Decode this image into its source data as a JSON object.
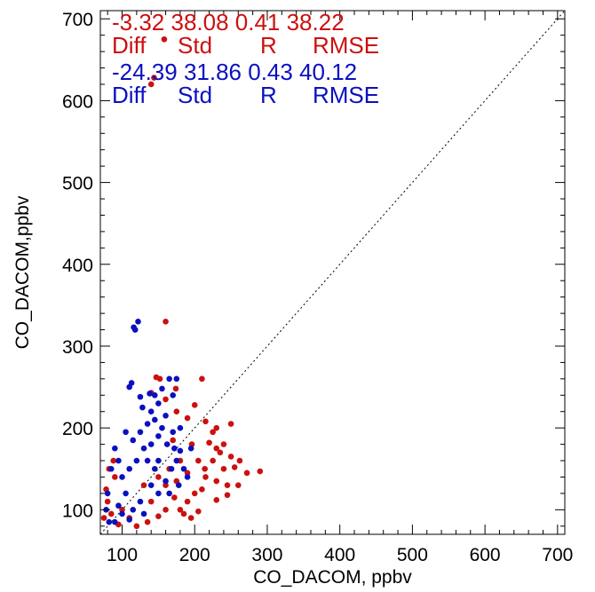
{
  "chart_data": {
    "type": "scatter",
    "xlabel": "CO_DACOM, ppbv",
    "ylabel": "CO_DACOM,ppbv",
    "xlim": [
      70,
      710
    ],
    "ylim": [
      70,
      710
    ],
    "x_ticks": [
      100,
      200,
      300,
      400,
      500,
      600,
      700
    ],
    "y_ticks": [
      100,
      200,
      300,
      400,
      500,
      600,
      700
    ],
    "grid": false,
    "reference_line": "1:1 dotted",
    "stats_header": [
      "Diff",
      "Std",
      "R",
      "RMSE"
    ],
    "series": [
      {
        "color": "#cc1010",
        "stats": {
          "diff": "-3.32",
          "std": "38.08",
          "r": "0.41",
          "rmse": "38.22"
        },
        "points": [
          [
            158,
            675
          ],
          [
            144,
            628
          ],
          [
            140,
            620
          ],
          [
            160,
            330
          ],
          [
            147,
            262
          ],
          [
            152,
            260
          ],
          [
            210,
            260
          ],
          [
            140,
            243
          ],
          [
            174,
            248
          ],
          [
            160,
            235
          ],
          [
            200,
            228
          ],
          [
            250,
            205
          ],
          [
            230,
            200
          ],
          [
            225,
            195
          ],
          [
            175,
            220
          ],
          [
            190,
            212
          ],
          [
            215,
            208
          ],
          [
            170,
            185
          ],
          [
            196,
            180
          ],
          [
            220,
            182
          ],
          [
            235,
            170
          ],
          [
            250,
            165
          ],
          [
            262,
            160
          ],
          [
            240,
            150
          ],
          [
            255,
            152
          ],
          [
            272,
            145
          ],
          [
            290,
            147
          ],
          [
            260,
            130
          ],
          [
            245,
            130
          ],
          [
            230,
            135
          ],
          [
            215,
            140
          ],
          [
            200,
            120
          ],
          [
            190,
            110
          ],
          [
            205,
            98
          ],
          [
            230,
            112
          ],
          [
            210,
            125
          ],
          [
            245,
            118
          ],
          [
            180,
            100
          ],
          [
            172,
            115
          ],
          [
            195,
            90
          ],
          [
            185,
            95
          ],
          [
            160,
            100
          ],
          [
            150,
            92
          ],
          [
            230,
            175
          ],
          [
            205,
            160
          ],
          [
            214,
            150
          ],
          [
            225,
            160
          ],
          [
            240,
            180
          ],
          [
            180,
            160
          ],
          [
            165,
            150
          ],
          [
            190,
            145
          ],
          [
            175,
            135
          ],
          [
            160,
            130
          ],
          [
            150,
            140
          ],
          [
            135,
            85
          ],
          [
            120,
            80
          ],
          [
            130,
            130
          ],
          [
            140,
            110
          ],
          [
            110,
            90
          ],
          [
            95,
            82
          ],
          [
            100,
            100
          ],
          [
            85,
            95
          ],
          [
            80,
            110
          ],
          [
            90,
            140
          ],
          [
            75,
            90
          ],
          [
            78,
            125
          ],
          [
            82,
            150
          ],
          [
            88,
            160
          ]
        ]
      },
      {
        "color": "#0a10c0",
        "stats": {
          "diff": "-24.39",
          "std": "31.86",
          "r": "0.43",
          "rmse": "40.12"
        },
        "points": [
          [
            122,
            330
          ],
          [
            116,
            323
          ],
          [
            118,
            320
          ],
          [
            113,
            255
          ],
          [
            110,
            250
          ],
          [
            165,
            260
          ],
          [
            175,
            260
          ],
          [
            145,
            240
          ],
          [
            155,
            248
          ],
          [
            125,
            238
          ],
          [
            138,
            242
          ],
          [
            150,
            230
          ],
          [
            170,
            240
          ],
          [
            128,
            225
          ],
          [
            140,
            220
          ],
          [
            160,
            215
          ],
          [
            180,
            200
          ],
          [
            135,
            205
          ],
          [
            145,
            210
          ],
          [
            155,
            200
          ],
          [
            170,
            195
          ],
          [
            150,
            190
          ],
          [
            162,
            180
          ],
          [
            172,
            175
          ],
          [
            180,
            172
          ],
          [
            195,
            175
          ],
          [
            175,
            160
          ],
          [
            168,
            150
          ],
          [
            185,
            150
          ],
          [
            190,
            140
          ],
          [
            178,
            130
          ],
          [
            160,
            135
          ],
          [
            165,
            120
          ],
          [
            150,
            120
          ],
          [
            140,
            130
          ],
          [
            125,
            110
          ],
          [
            130,
            95
          ],
          [
            115,
            100
          ],
          [
            110,
            88
          ],
          [
            100,
            95
          ],
          [
            95,
            105
          ],
          [
            105,
            120
          ],
          [
            100,
            140
          ],
          [
            110,
            150
          ],
          [
            95,
            160
          ],
          [
            90,
            175
          ],
          [
            85,
            150
          ],
          [
            80,
            120
          ],
          [
            78,
            100
          ],
          [
            82,
            85
          ],
          [
            90,
            85
          ],
          [
            120,
            160
          ],
          [
            130,
            175
          ],
          [
            115,
            185
          ],
          [
            105,
            195
          ],
          [
            125,
            195
          ],
          [
            140,
            180
          ],
          [
            135,
            160
          ],
          [
            150,
            160
          ],
          [
            145,
            150
          ]
        ]
      }
    ]
  }
}
